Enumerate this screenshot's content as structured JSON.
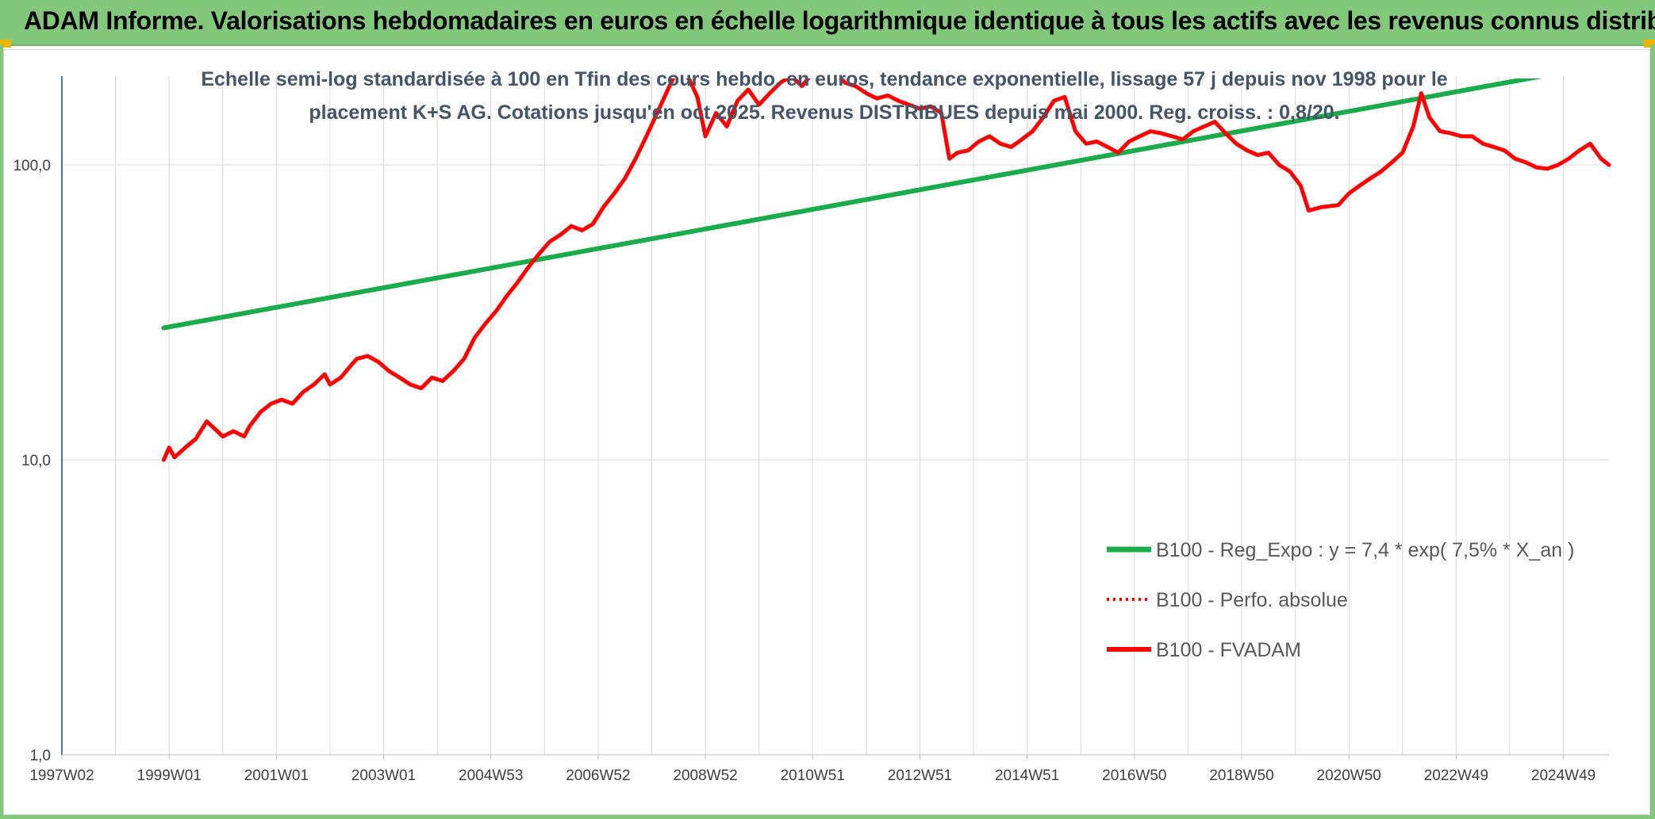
{
  "banner": {
    "title": "ADAM Informe. Valorisations hebdomadaires en euros en échelle logarithmique identique à tous les actifs avec les revenus connus distribués"
  },
  "colors": {
    "banner_bg": "#82c87a",
    "corner_accent": "#f2b200",
    "trend_line": "#1aab4a",
    "fvadam_line": "#ff0000",
    "perfo_line": "#ff0000",
    "subtitle_text": "#44546a",
    "grid": "#d9d9d9",
    "y_axis": "#4472c4"
  },
  "chart_data": {
    "type": "line",
    "title_lines": [
      "Echelle semi-log standardisée à 100 en Tfin des cours hebdo. en euros, tendance exponentielle, lissage 57 j depuis nov 1998 pour le",
      "placement K+S AG. Cotations jusqu'en oct 2025. Revenus DISTRIBUES depuis mai 2000. Reg. croiss. : 0,8/20."
    ],
    "yscale": "log",
    "ylim": [
      1,
      200
    ],
    "xlim": [
      1997.0,
      2025.85
    ],
    "y_ticks": [
      {
        "value": 1,
        "label": "1,0"
      },
      {
        "value": 10,
        "label": "10,0"
      },
      {
        "value": 100,
        "label": "100,0"
      }
    ],
    "x_ticks": [
      {
        "year": 1997.0,
        "label": "1997W02"
      },
      {
        "year": 1999.0,
        "label": "1999W01"
      },
      {
        "year": 2001.0,
        "label": "2001W01"
      },
      {
        "year": 2003.0,
        "label": "2003W01"
      },
      {
        "year": 2005.0,
        "label": "2004W53"
      },
      {
        "year": 2007.0,
        "label": "2006W52"
      },
      {
        "year": 2009.0,
        "label": "2008W52"
      },
      {
        "year": 2011.0,
        "label": "2010W51"
      },
      {
        "year": 2013.0,
        "label": "2012W51"
      },
      {
        "year": 2015.0,
        "label": "2014W51"
      },
      {
        "year": 2017.0,
        "label": "2016W50"
      },
      {
        "year": 2019.0,
        "label": "2018W50"
      },
      {
        "year": 2021.0,
        "label": "2020W50"
      },
      {
        "year": 2023.0,
        "label": "2022W49"
      },
      {
        "year": 2025.0,
        "label": "2024W49"
      }
    ],
    "grid": true,
    "legend_position": "bottom-right",
    "series": [
      {
        "name": "B100 - Reg_Expo : y = 7,4 * exp( 7,5% *  X_an )",
        "style": "solid",
        "color": "#1aab4a",
        "points": [
          [
            1998.9,
            28.0
          ],
          [
            2024.6,
            200.0
          ]
        ]
      },
      {
        "name": "B100 - Perfo. absolue",
        "style": "dotted",
        "color": "#ff0000",
        "points": []
      },
      {
        "name": "B100 - FVADAM",
        "style": "solid",
        "color": "#ff0000",
        "points": [
          [
            1998.9,
            10.0
          ],
          [
            1999.0,
            11.0
          ],
          [
            1999.1,
            10.2
          ],
          [
            1999.3,
            11.0
          ],
          [
            1999.5,
            11.8
          ],
          [
            1999.7,
            13.5
          ],
          [
            1999.9,
            12.5
          ],
          [
            2000.0,
            12.0
          ],
          [
            2000.2,
            12.5
          ],
          [
            2000.4,
            12.0
          ],
          [
            2000.5,
            13.0
          ],
          [
            2000.7,
            14.5
          ],
          [
            2000.9,
            15.5
          ],
          [
            2001.1,
            16.0
          ],
          [
            2001.3,
            15.5
          ],
          [
            2001.5,
            17.0
          ],
          [
            2001.7,
            18.0
          ],
          [
            2001.9,
            19.5
          ],
          [
            2002.0,
            18.0
          ],
          [
            2002.2,
            19.0
          ],
          [
            2002.4,
            21.0
          ],
          [
            2002.5,
            22.0
          ],
          [
            2002.7,
            22.5
          ],
          [
            2002.9,
            21.5
          ],
          [
            2003.1,
            20.0
          ],
          [
            2003.3,
            19.0
          ],
          [
            2003.5,
            18.0
          ],
          [
            2003.7,
            17.5
          ],
          [
            2003.9,
            19.0
          ],
          [
            2004.1,
            18.5
          ],
          [
            2004.3,
            20.0
          ],
          [
            2004.5,
            22.0
          ],
          [
            2004.7,
            26.0
          ],
          [
            2004.9,
            29.0
          ],
          [
            2005.1,
            32.0
          ],
          [
            2005.3,
            36.0
          ],
          [
            2005.5,
            40.0
          ],
          [
            2005.7,
            45.0
          ],
          [
            2005.9,
            50.0
          ],
          [
            2006.1,
            55.0
          ],
          [
            2006.3,
            58.0
          ],
          [
            2006.5,
            62.0
          ],
          [
            2006.7,
            60.0
          ],
          [
            2006.9,
            63.0
          ],
          [
            2007.1,
            72.0
          ],
          [
            2007.3,
            80.0
          ],
          [
            2007.5,
            90.0
          ],
          [
            2007.7,
            105.0
          ],
          [
            2007.9,
            125.0
          ],
          [
            2008.1,
            150.0
          ],
          [
            2008.3,
            180.0
          ],
          [
            2008.5,
            215.0
          ],
          [
            2008.7,
            195.0
          ],
          [
            2008.85,
            170.0
          ],
          [
            2009.0,
            125.0
          ],
          [
            2009.2,
            150.0
          ],
          [
            2009.4,
            135.0
          ],
          [
            2009.6,
            165.0
          ],
          [
            2009.8,
            180.0
          ],
          [
            2010.0,
            160.0
          ],
          [
            2010.2,
            175.0
          ],
          [
            2010.4,
            190.0
          ],
          [
            2010.6,
            200.0
          ],
          [
            2010.8,
            185.0
          ],
          [
            2011.0,
            205.0
          ],
          [
            2011.2,
            225.0
          ],
          [
            2011.4,
            210.0
          ],
          [
            2011.6,
            190.0
          ],
          [
            2011.8,
            185.0
          ],
          [
            2012.0,
            175.0
          ],
          [
            2012.2,
            168.0
          ],
          [
            2012.4,
            172.0
          ],
          [
            2012.6,
            165.0
          ],
          [
            2012.8,
            160.0
          ],
          [
            2013.0,
            155.0
          ],
          [
            2013.2,
            158.0
          ],
          [
            2013.4,
            150.0
          ],
          [
            2013.55,
            105.0
          ],
          [
            2013.7,
            110.0
          ],
          [
            2013.9,
            112.0
          ],
          [
            2014.1,
            120.0
          ],
          [
            2014.3,
            125.0
          ],
          [
            2014.5,
            118.0
          ],
          [
            2014.7,
            115.0
          ],
          [
            2014.9,
            122.0
          ],
          [
            2015.1,
            130.0
          ],
          [
            2015.3,
            145.0
          ],
          [
            2015.5,
            165.0
          ],
          [
            2015.7,
            170.0
          ],
          [
            2015.9,
            130.0
          ],
          [
            2016.1,
            118.0
          ],
          [
            2016.3,
            120.0
          ],
          [
            2016.5,
            115.0
          ],
          [
            2016.7,
            110.0
          ],
          [
            2016.9,
            120.0
          ],
          [
            2017.1,
            125.0
          ],
          [
            2017.3,
            130.0
          ],
          [
            2017.5,
            128.0
          ],
          [
            2017.7,
            125.0
          ],
          [
            2017.9,
            122.0
          ],
          [
            2018.1,
            130.0
          ],
          [
            2018.3,
            135.0
          ],
          [
            2018.5,
            140.0
          ],
          [
            2018.7,
            128.0
          ],
          [
            2018.9,
            118.0
          ],
          [
            2019.1,
            112.0
          ],
          [
            2019.3,
            108.0
          ],
          [
            2019.5,
            110.0
          ],
          [
            2019.7,
            100.0
          ],
          [
            2019.9,
            95.0
          ],
          [
            2020.1,
            85.0
          ],
          [
            2020.25,
            70.0
          ],
          [
            2020.5,
            72.0
          ],
          [
            2020.8,
            73.0
          ],
          [
            2021.0,
            80.0
          ],
          [
            2021.2,
            85.0
          ],
          [
            2021.4,
            90.0
          ],
          [
            2021.6,
            95.0
          ],
          [
            2021.8,
            102.0
          ],
          [
            2022.0,
            110.0
          ],
          [
            2022.2,
            135.0
          ],
          [
            2022.35,
            175.0
          ],
          [
            2022.5,
            145.0
          ],
          [
            2022.7,
            130.0
          ],
          [
            2022.9,
            128.0
          ],
          [
            2023.1,
            125.0
          ],
          [
            2023.3,
            125.0
          ],
          [
            2023.5,
            118.0
          ],
          [
            2023.7,
            115.0
          ],
          [
            2023.9,
            112.0
          ],
          [
            2024.1,
            105.0
          ],
          [
            2024.3,
            102.0
          ],
          [
            2024.5,
            98.0
          ],
          [
            2024.7,
            97.0
          ],
          [
            2024.9,
            100.0
          ],
          [
            2025.1,
            105.0
          ],
          [
            2025.3,
            112.0
          ],
          [
            2025.5,
            118.0
          ],
          [
            2025.7,
            105.0
          ],
          [
            2025.85,
            100.0
          ]
        ]
      }
    ]
  }
}
